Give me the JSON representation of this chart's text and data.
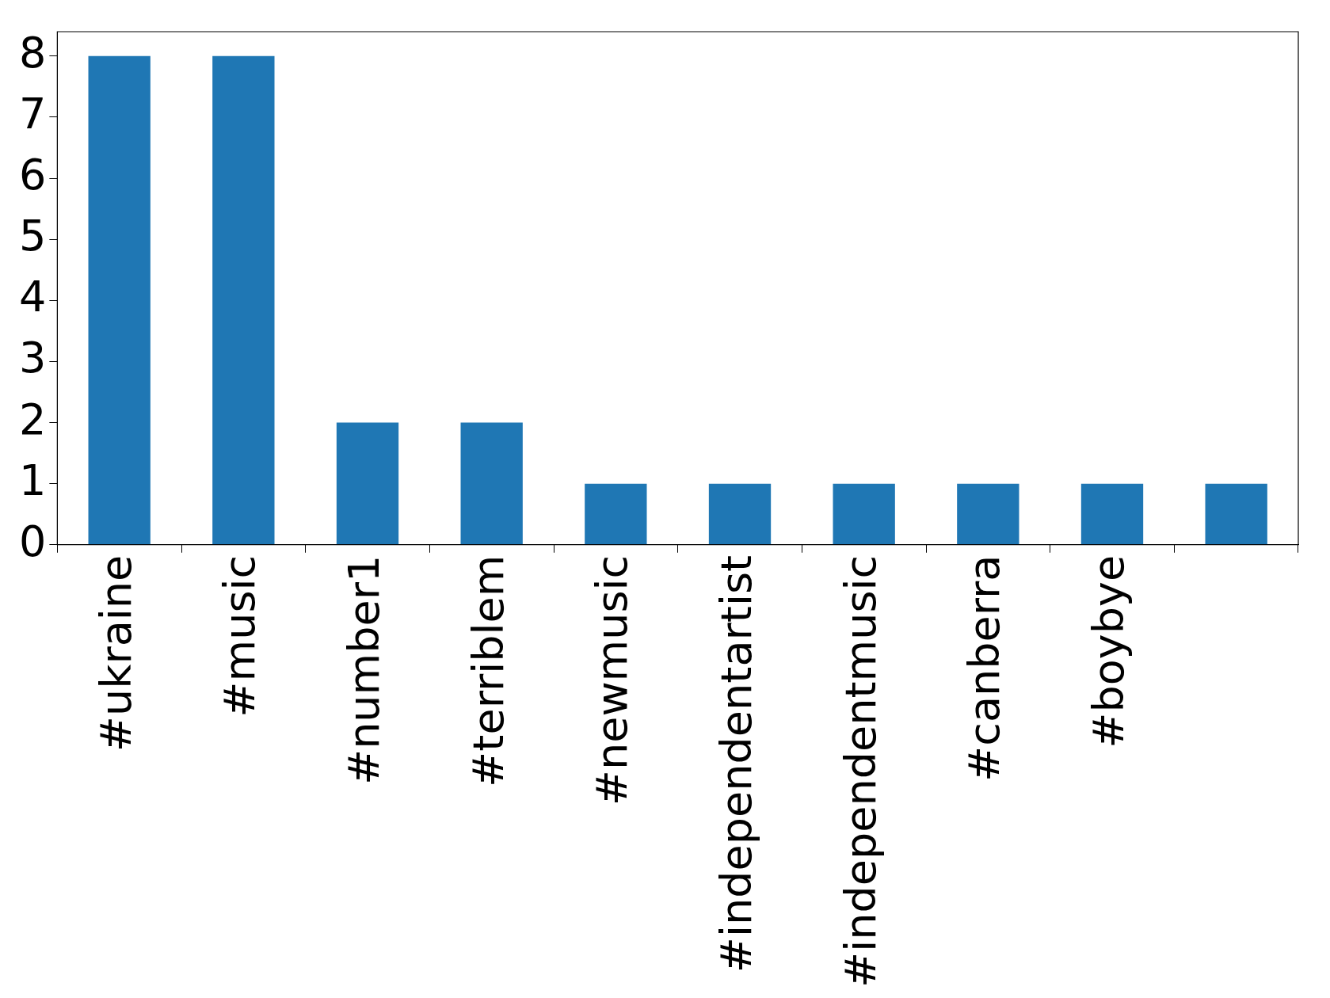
{
  "chart_data": {
    "type": "bar",
    "categories": [
      "#ukraine",
      "#music",
      "#number1",
      "#terriblem",
      "#newmusic",
      "#independentartist",
      "#independentmusic",
      "#canberra",
      "#boybye",
      null
    ],
    "values": [
      8,
      8,
      2,
      2,
      1,
      1,
      1,
      1,
      1,
      1
    ],
    "color": "#1f77b4",
    "ylim": [
      0,
      8.4
    ],
    "yticks": [
      0,
      1,
      2,
      3,
      4,
      5,
      6,
      7,
      8
    ],
    "grid": false,
    "legend": false
  }
}
